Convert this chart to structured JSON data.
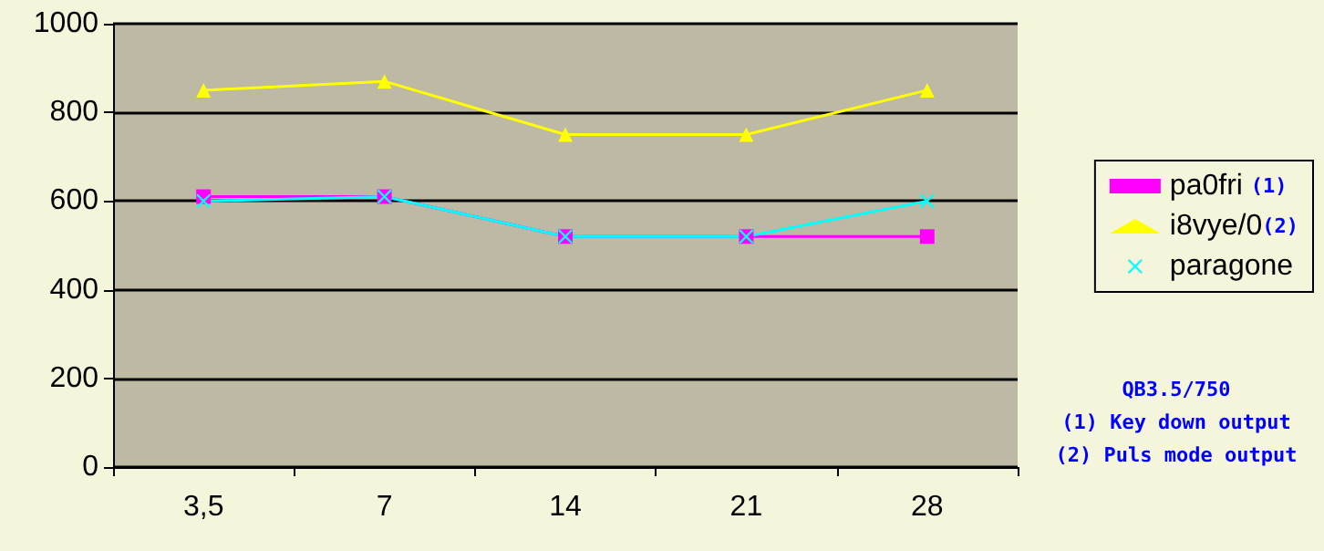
{
  "chart_data": {
    "type": "line",
    "categories": [
      "3,5",
      "7",
      "14",
      "21",
      "28"
    ],
    "series": [
      {
        "name": "pa0fri (1)",
        "color": "#ff00ff",
        "marker": "square",
        "values": [
          610,
          610,
          520,
          520,
          520
        ]
      },
      {
        "name": "i8vye/0(2)",
        "color": "#ffff00",
        "marker": "triangle",
        "values": [
          850,
          870,
          750,
          750,
          850
        ]
      },
      {
        "name": "paragone",
        "color": "#00ffff",
        "marker": "cross",
        "values": [
          600,
          610,
          520,
          520,
          600
        ]
      }
    ],
    "ylim": [
      0,
      1000
    ],
    "yticks": [
      0,
      200,
      400,
      600,
      800,
      1000
    ],
    "grid": "y",
    "legend": "right",
    "annotations": [
      "QB3.5/750",
      "(1) Key down output",
      "(2) Puls mode output"
    ]
  }
}
